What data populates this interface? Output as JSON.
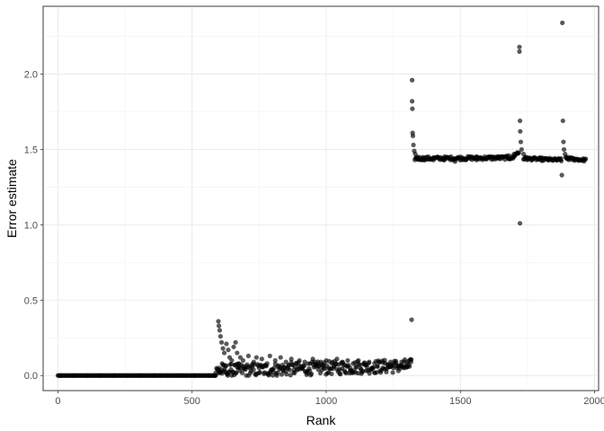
{
  "chart_data": {
    "type": "scatter",
    "xlabel": "Rank",
    "ylabel": "Error estimate",
    "xlim": [
      -55,
      2015
    ],
    "ylim": [
      -0.1,
      2.45
    ],
    "x_ticks": [
      0,
      500,
      1000,
      1500,
      2000
    ],
    "x_tick_labels": [
      "0",
      "500",
      "1000",
      "1500",
      "2000"
    ],
    "y_ticks": [
      0.0,
      0.5,
      1.0,
      1.5,
      2.0
    ],
    "y_tick_labels": [
      "0.0",
      "0.5",
      "1.0",
      "1.5",
      "2.0"
    ],
    "grid": true,
    "point_color": "#000000",
    "point_opacity": 0.65,
    "series": [
      {
        "values": [
          [
            10,
            0.0
          ],
          [
            60,
            0.0
          ],
          [
            110,
            0.0
          ],
          [
            160,
            0.0
          ],
          [
            210,
            0.0
          ],
          [
            260,
            0.0
          ],
          [
            310,
            0.0
          ],
          [
            360,
            0.0
          ],
          [
            410,
            0.0
          ],
          [
            460,
            0.0
          ],
          [
            510,
            0.0
          ],
          [
            560,
            0.0
          ],
          [
            585,
            0.0
          ],
          [
            598,
            0.36
          ],
          [
            600,
            0.33
          ],
          [
            603,
            0.3
          ],
          [
            606,
            0.26
          ],
          [
            610,
            0.22
          ],
          [
            615,
            0.18
          ],
          [
            620,
            0.15
          ],
          [
            628,
            0.21
          ],
          [
            635,
            0.17
          ],
          [
            640,
            0.12
          ],
          [
            648,
            0.1
          ],
          [
            655,
            0.19
          ],
          [
            662,
            0.22
          ],
          [
            668,
            0.15
          ],
          [
            675,
            0.08
          ],
          [
            680,
            0.12
          ],
          [
            600,
            0.05
          ],
          [
            605,
            0.02
          ],
          [
            612,
            0.08
          ],
          [
            618,
            0.03
          ],
          [
            625,
            0.06
          ],
          [
            632,
            0.01
          ],
          [
            645,
            0.04
          ],
          [
            658,
            0.07
          ],
          [
            665,
            0.02
          ],
          [
            672,
            0.05
          ],
          [
            690,
            0.1
          ],
          [
            700,
            0.06
          ],
          [
            710,
            0.13
          ],
          [
            720,
            0.03
          ],
          [
            730,
            0.09
          ],
          [
            740,
            0.12
          ],
          [
            750,
            0.05
          ],
          [
            760,
            0.11
          ],
          [
            770,
            0.02
          ],
          [
            780,
            0.08
          ],
          [
            790,
            0.13
          ],
          [
            800,
            0.04
          ],
          [
            810,
            0.1
          ],
          [
            820,
            0.06
          ],
          [
            830,
            0.12
          ],
          [
            840,
            0.03
          ],
          [
            850,
            0.09
          ],
          [
            860,
            0.07
          ],
          [
            870,
            0.11
          ],
          [
            880,
            0.04
          ],
          [
            890,
            0.08
          ],
          [
            900,
            0.1
          ],
          [
            910,
            0.05
          ],
          [
            920,
            0.09
          ],
          [
            930,
            0.03
          ],
          [
            940,
            0.08
          ],
          [
            950,
            0.11
          ],
          [
            960,
            0.06
          ],
          [
            970,
            0.04
          ],
          [
            980,
            0.09
          ],
          [
            990,
            0.07
          ],
          [
            1000,
            0.1
          ],
          [
            1010,
            0.05
          ],
          [
            1020,
            0.08
          ],
          [
            1030,
            0.06
          ],
          [
            1040,
            0.11
          ],
          [
            1050,
            0.04
          ],
          [
            1060,
            0.09
          ],
          [
            1070,
            0.07
          ],
          [
            1080,
            0.1
          ],
          [
            1090,
            0.05
          ],
          [
            1100,
            0.08
          ],
          [
            1110,
            0.06
          ],
          [
            1120,
            0.1
          ],
          [
            1130,
            0.04
          ],
          [
            1140,
            0.08
          ],
          [
            1150,
            0.07
          ],
          [
            1160,
            0.09
          ],
          [
            1170,
            0.05
          ],
          [
            1180,
            0.08
          ],
          [
            1190,
            0.06
          ],
          [
            1200,
            0.09
          ],
          [
            1210,
            0.05
          ],
          [
            1220,
            0.08
          ],
          [
            1230,
            0.07
          ],
          [
            1240,
            0.09
          ],
          [
            1250,
            0.05
          ],
          [
            1260,
            0.08
          ],
          [
            1270,
            0.06
          ],
          [
            1280,
            0.07
          ],
          [
            1290,
            0.05
          ],
          [
            1300,
            0.08
          ],
          [
            1310,
            0.06
          ],
          [
            1316,
            0.09
          ],
          [
            1318,
            0.37
          ],
          [
            1320,
            1.96
          ],
          [
            1320,
            1.82
          ],
          [
            1321,
            1.77
          ],
          [
            1322,
            1.61
          ],
          [
            1323,
            1.59
          ],
          [
            1325,
            1.53
          ],
          [
            1328,
            1.49
          ],
          [
            1332,
            1.47
          ],
          [
            1340,
            1.45
          ],
          [
            1360,
            1.44
          ],
          [
            1400,
            1.43
          ],
          [
            1440,
            1.43
          ],
          [
            1480,
            1.42
          ],
          [
            1520,
            1.43
          ],
          [
            1560,
            1.43
          ],
          [
            1600,
            1.44
          ],
          [
            1640,
            1.45
          ],
          [
            1680,
            1.46
          ],
          [
            1700,
            1.47
          ],
          [
            1712,
            1.48
          ],
          [
            1720,
            2.18
          ],
          [
            1720,
            2.15
          ],
          [
            1722,
            1.69
          ],
          [
            1722,
            1.01
          ],
          [
            1723,
            1.62
          ],
          [
            1725,
            1.55
          ],
          [
            1728,
            1.5
          ],
          [
            1735,
            1.47
          ],
          [
            1745,
            1.45
          ],
          [
            1770,
            1.44
          ],
          [
            1800,
            1.43
          ],
          [
            1830,
            1.43
          ],
          [
            1860,
            1.43
          ],
          [
            1875,
            1.44
          ],
          [
            1880,
            2.34
          ],
          [
            1882,
            1.69
          ],
          [
            1884,
            1.55
          ],
          [
            1878,
            1.33
          ],
          [
            1886,
            1.5
          ],
          [
            1890,
            1.47
          ],
          [
            1900,
            1.45
          ],
          [
            1920,
            1.44
          ],
          [
            1940,
            1.43
          ],
          [
            1960,
            1.43
          ]
        ]
      }
    ],
    "dense_segments": [
      {
        "x_from": 0,
        "x_to": 588,
        "y_from": 0.0,
        "y_to": 0.0,
        "jitter": 0.0
      },
      {
        "x_from": 588,
        "x_to": 1318,
        "y_from": 0.03,
        "y_to": 0.065,
        "jitter": 0.045
      },
      {
        "x_from": 1330,
        "x_to": 1700,
        "y_from": 1.44,
        "y_to": 1.445,
        "jitter": 0.012
      },
      {
        "x_from": 1700,
        "x_to": 1718,
        "y_from": 1.46,
        "y_to": 1.48,
        "jitter": 0.01
      },
      {
        "x_from": 1735,
        "x_to": 1876,
        "y_from": 1.44,
        "y_to": 1.43,
        "jitter": 0.01
      },
      {
        "x_from": 1892,
        "x_to": 1968,
        "y_from": 1.44,
        "y_to": 1.43,
        "jitter": 0.01
      }
    ]
  }
}
